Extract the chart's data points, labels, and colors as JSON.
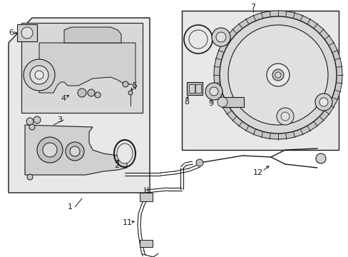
{
  "bg_color": "#ffffff",
  "box_bg": "#e8e8e8",
  "line_color": "#1a1a1a",
  "figsize": [
    4.89,
    3.6
  ],
  "dpi": 100
}
